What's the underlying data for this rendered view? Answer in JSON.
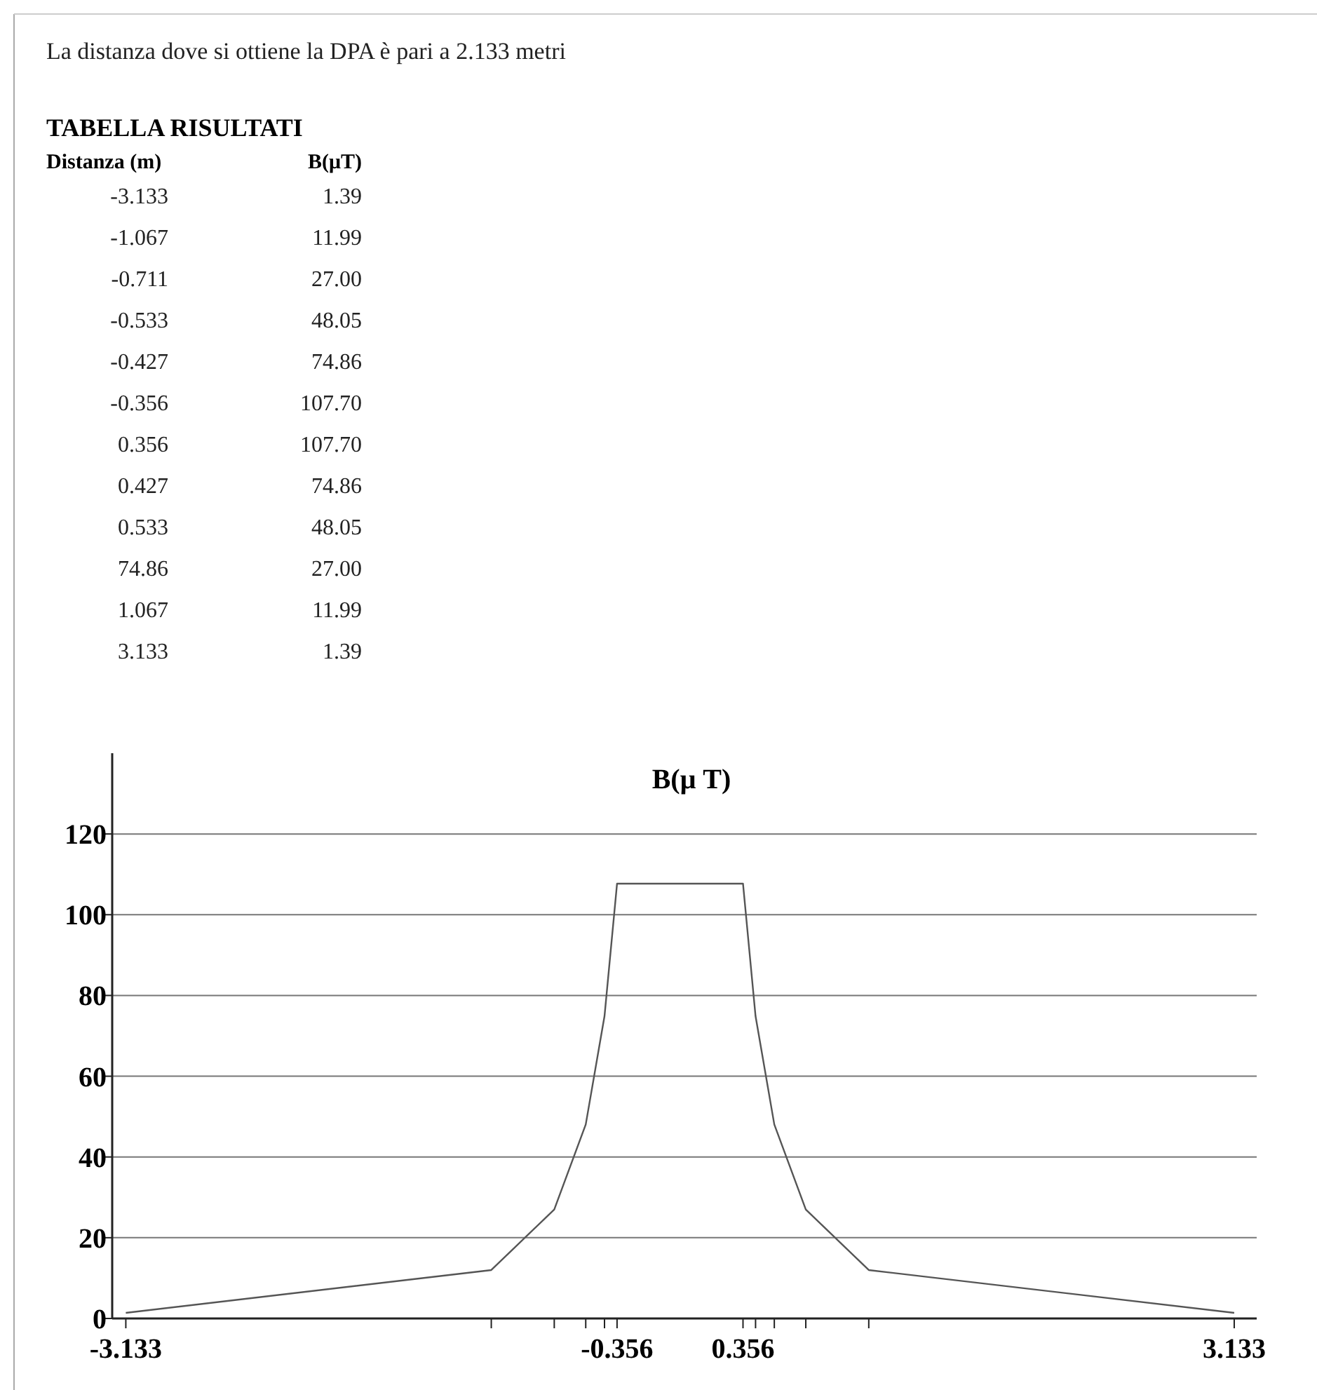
{
  "chart_data": {
    "type": "line",
    "title": "B(μ T)",
    "annotations": [
      "La distanza dove si ottiene la DPA è pari a 2.133 metri",
      "TABELLA RISULTATI",
      "Distanza (m)",
      "B(μT)",
      "-3.133",
      "1.39",
      "-1.067",
      "11.99",
      "-0.711",
      "27.00",
      "-0.533",
      "48.05",
      "-0.427",
      "74.86",
      "-0.356",
      "107.70",
      "0.356",
      "107.70",
      "0.427",
      "74.86",
      "0.533",
      "48.05",
      "74.86",
      "27.00",
      "1.067",
      "11.99",
      "3.133",
      "1.39"
    ],
    "x": [
      -3.133,
      -1.067,
      -0.711,
      -0.533,
      -0.427,
      -0.356,
      0.356,
      0.427,
      0.533,
      0.711,
      1.067,
      3.133
    ],
    "series": [
      {
        "color": "#555555",
        "values": [
          1.39,
          11.99,
          27.0,
          48.05,
          74.86,
          107.7,
          107.7,
          74.86,
          48.05,
          27.0,
          11.99,
          1.39
        ]
      }
    ],
    "xlim": [
      -3.21,
      3.26
    ],
    "xticks": [
      {
        "value": -3.133,
        "label": "-3.133"
      },
      {
        "value": -1.067,
        "label": null
      },
      {
        "value": -0.711,
        "label": null
      },
      {
        "value": -0.533,
        "label": null
      },
      {
        "value": -0.427,
        "label": null
      },
      {
        "value": -0.356,
        "label": "-0.356"
      },
      {
        "value": 0.356,
        "label": "0.356"
      },
      {
        "value": 0.427,
        "label": null
      },
      {
        "value": 0.533,
        "label": null
      },
      {
        "value": 0.711,
        "label": null
      },
      {
        "value": 1.067,
        "label": null
      },
      {
        "value": 3.133,
        "label": "3.133"
      }
    ],
    "ylim": [
      0,
      140
    ],
    "yticks": [
      0,
      20,
      40,
      60,
      80,
      100,
      120
    ],
    "grid": "y",
    "marker": "none",
    "line_style": "solid"
  }
}
